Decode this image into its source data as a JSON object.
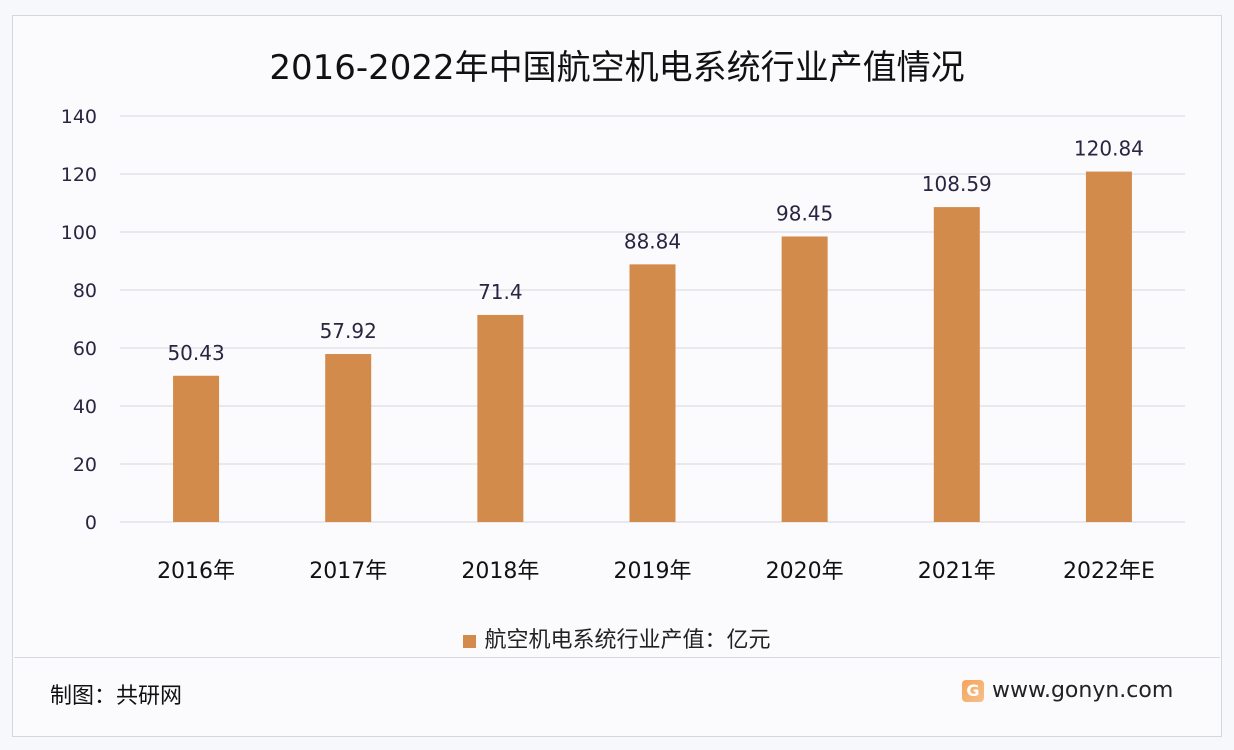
{
  "chart_data": {
    "type": "bar",
    "title": "2016-2022年中国航空机电系统行业产值情况",
    "categories": [
      "2016年",
      "2017年",
      "2018年",
      "2019年",
      "2020年",
      "2021年",
      "2022年E"
    ],
    "series": [
      {
        "name": "航空机电系统行业产值：亿元",
        "values": [
          50.43,
          57.92,
          71.4,
          88.84,
          98.45,
          108.59,
          120.84
        ],
        "labels": [
          "50.43",
          "57.92",
          "71.4",
          "88.84",
          "98.45",
          "108.59",
          "120.84"
        ],
        "color": "#d28b4a"
      }
    ],
    "ylim": [
      0,
      140
    ],
    "yticks": [
      0,
      20,
      40,
      60,
      80,
      100,
      120,
      140
    ],
    "grid": true,
    "legend": "bottom"
  },
  "footer": {
    "credit": "制图：共研网",
    "site": "www.gonyn.com",
    "logo_letter": "G"
  }
}
